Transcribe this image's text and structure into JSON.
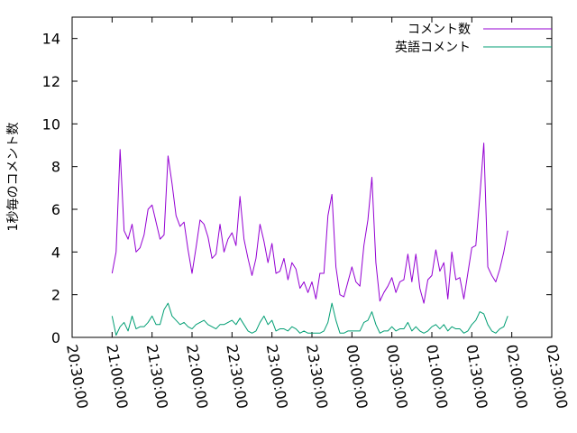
{
  "chart_data": {
    "type": "line",
    "title": "",
    "xlabel": "",
    "ylabel": "1秒毎のコメント数",
    "xlim": [
      "20:30:00",
      "02:30:00"
    ],
    "ylim": [
      0,
      15
    ],
    "x_ticks": [
      "20:30:00",
      "21:00:00",
      "21:30:00",
      "22:00:00",
      "22:30:00",
      "23:00:00",
      "23:30:00",
      "00:00:00",
      "00:30:00",
      "01:00:00",
      "01:30:00",
      "02:00:00",
      "02:30:00"
    ],
    "y_ticks": [
      "0",
      "2",
      "4",
      "6",
      "8",
      "10",
      "12",
      "14"
    ],
    "y_tick_values": [
      0,
      2,
      4,
      6,
      8,
      10,
      12,
      14
    ],
    "grid": false,
    "legend_position": "top-right",
    "x_start": "21:00:00",
    "x_step_minutes": 3,
    "series": [
      {
        "name": "コメント数",
        "color": "#9400d3",
        "values": [
          3.0,
          4.0,
          8.8,
          5.0,
          4.6,
          5.3,
          4.0,
          4.2,
          4.8,
          6.0,
          6.2,
          5.4,
          4.6,
          4.8,
          8.5,
          7.2,
          5.7,
          5.2,
          5.4,
          4.1,
          3.0,
          4.2,
          5.5,
          5.3,
          4.7,
          3.7,
          3.9,
          5.3,
          4.0,
          4.6,
          4.9,
          4.3,
          6.6,
          4.6,
          3.7,
          2.9,
          3.7,
          5.3,
          4.5,
          3.5,
          4.4,
          3.0,
          3.1,
          3.7,
          2.7,
          3.5,
          3.2,
          2.3,
          2.6,
          2.1,
          2.6,
          1.8,
          3.0,
          3.0,
          5.7,
          6.7,
          3.3,
          2.0,
          1.9,
          2.6,
          3.3,
          2.6,
          2.4,
          4.3,
          5.5,
          7.5,
          3.5,
          1.7,
          2.1,
          2.4,
          2.8,
          2.1,
          2.6,
          2.7,
          3.9,
          2.6,
          3.9,
          2.3,
          1.6,
          2.7,
          2.9,
          4.1,
          3.1,
          3.5,
          1.8,
          4.0,
          2.7,
          2.8,
          1.8,
          3.0,
          4.2,
          4.3,
          6.6,
          9.1,
          3.3,
          2.9,
          2.6,
          3.2,
          4.0,
          5.0
        ]
      },
      {
        "name": "英語コメント",
        "color": "#009e73",
        "values": [
          1.0,
          0.1,
          0.5,
          0.7,
          0.3,
          1.0,
          0.4,
          0.5,
          0.5,
          0.7,
          1.0,
          0.6,
          0.6,
          1.3,
          1.6,
          1.0,
          0.8,
          0.6,
          0.7,
          0.5,
          0.4,
          0.6,
          0.7,
          0.8,
          0.6,
          0.5,
          0.4,
          0.6,
          0.6,
          0.7,
          0.8,
          0.6,
          0.9,
          0.6,
          0.3,
          0.2,
          0.3,
          0.7,
          1.0,
          0.6,
          0.8,
          0.3,
          0.4,
          0.4,
          0.3,
          0.5,
          0.4,
          0.2,
          0.3,
          0.2,
          0.2,
          0.2,
          0.2,
          0.3,
          0.7,
          1.6,
          0.8,
          0.2,
          0.2,
          0.3,
          0.3,
          0.3,
          0.3,
          0.7,
          0.8,
          1.2,
          0.6,
          0.2,
          0.3,
          0.3,
          0.5,
          0.3,
          0.4,
          0.4,
          0.7,
          0.3,
          0.5,
          0.3,
          0.2,
          0.3,
          0.5,
          0.6,
          0.4,
          0.6,
          0.3,
          0.5,
          0.4,
          0.4,
          0.2,
          0.3,
          0.6,
          0.8,
          1.2,
          1.1,
          0.6,
          0.3,
          0.2,
          0.4,
          0.5,
          1.0
        ]
      }
    ]
  }
}
